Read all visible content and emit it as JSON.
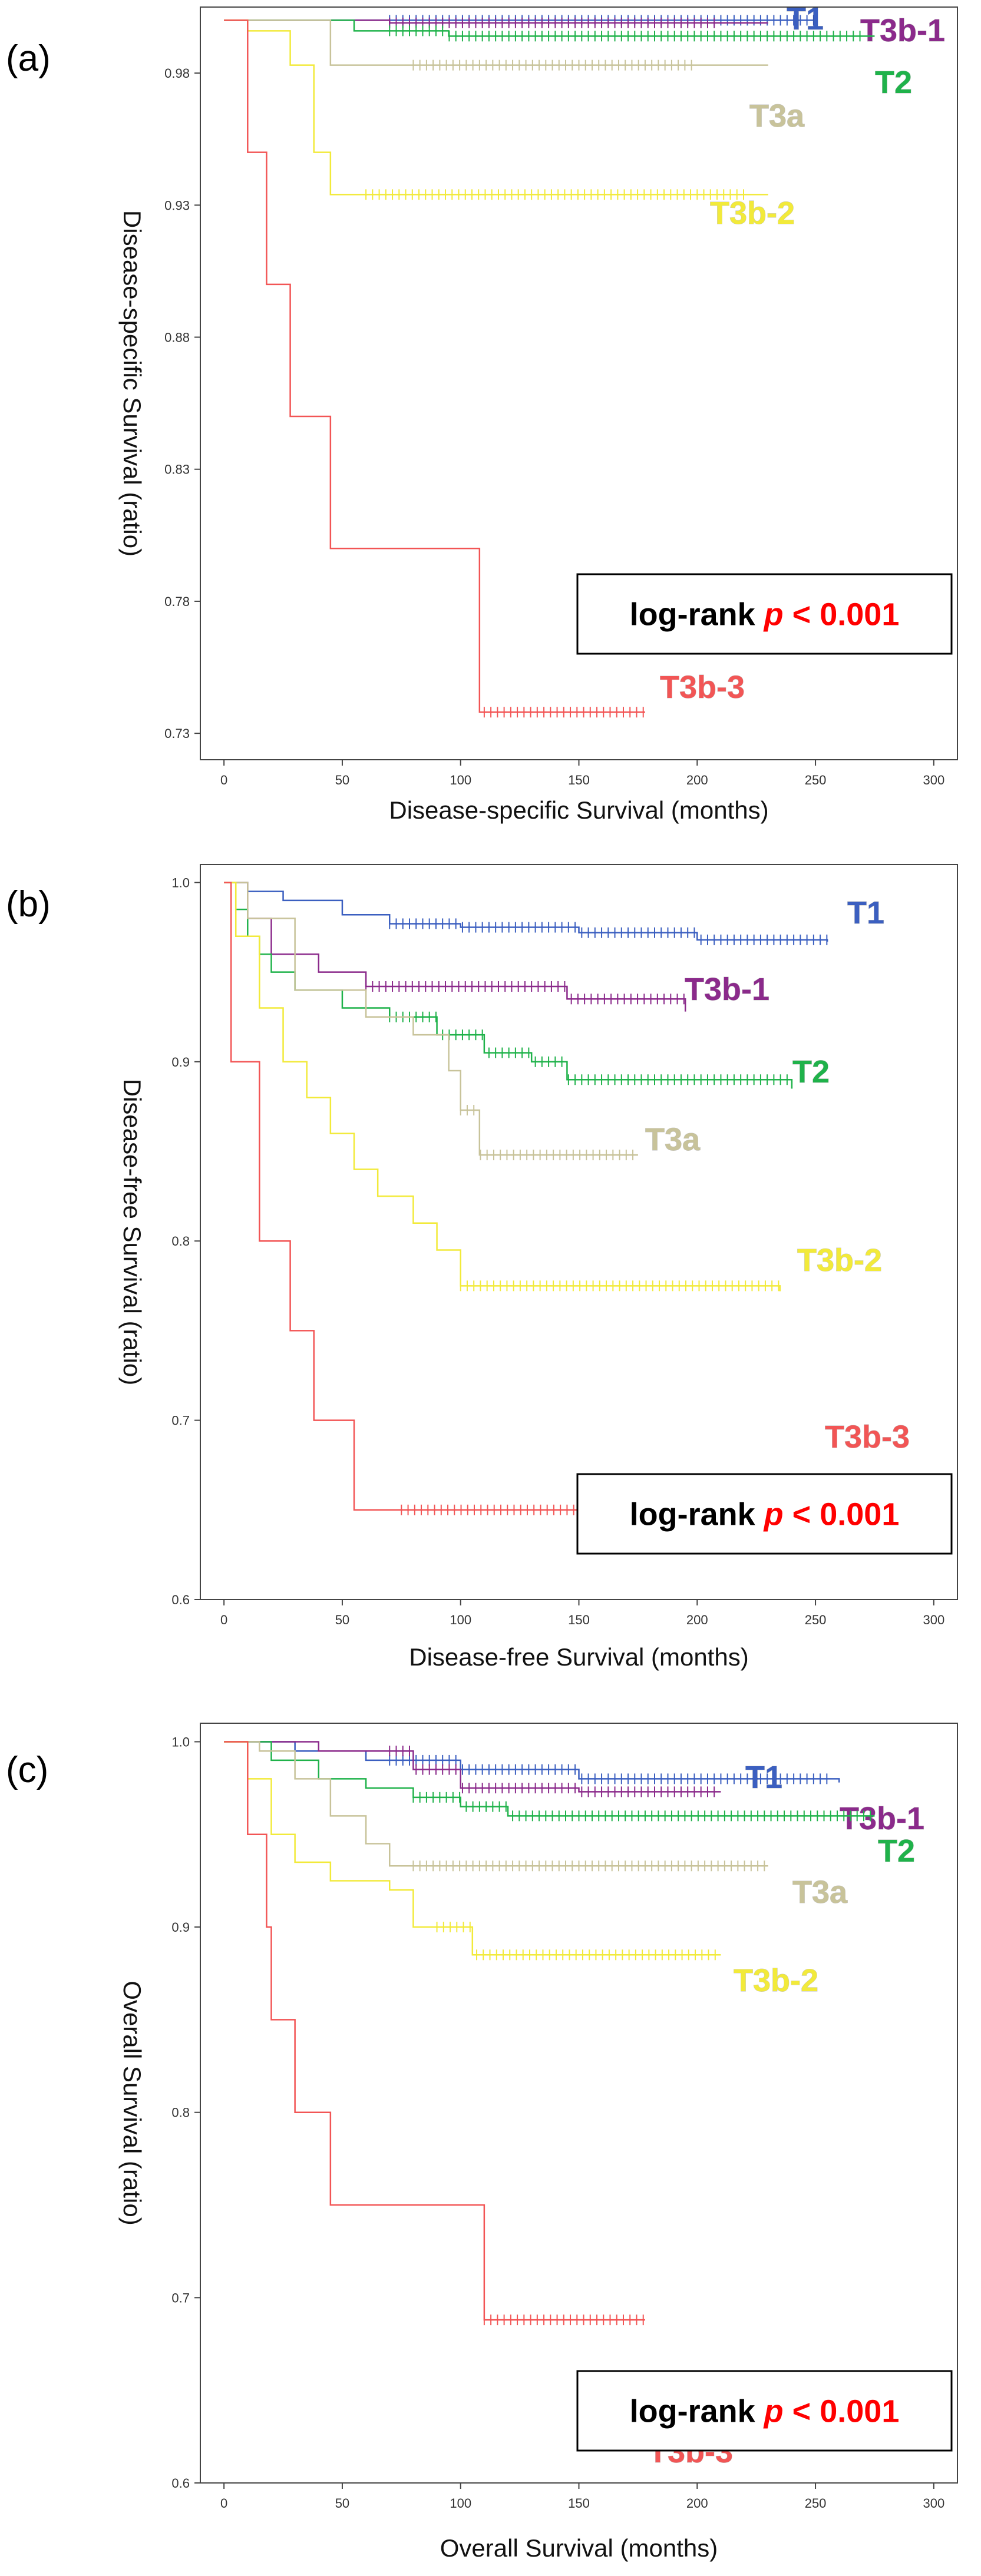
{
  "chart_data": [
    {
      "type": "line",
      "panel_label": "(a)",
      "xlabel": "Disease-specific Survival (months)",
      "ylabel": "Disease-specific Survival (ratio)",
      "xlim": [
        -10,
        310
      ],
      "ylim": [
        0.72,
        1.005
      ],
      "xticks": [
        0,
        50,
        100,
        150,
        200,
        250,
        300
      ],
      "yticks": [
        0.73,
        0.78,
        0.83,
        0.88,
        0.93,
        0.98
      ],
      "tick_labels_y": [
        "0.73",
        "0.78",
        "0.83",
        "0.88",
        "0.93",
        "0.98"
      ],
      "annotation": {
        "text": "log-rank",
        "p_symbol": "p",
        "p_value": "< 0.001"
      },
      "series": [
        {
          "name": "T1",
          "color": "#3b5fc0",
          "steps": [
            [
              0,
              1.0
            ],
            [
              250,
              0.9995
            ]
          ],
          "censor_range": [
            70,
            250
          ]
        },
        {
          "name": "T3b-1",
          "color": "#8b2a8b",
          "steps": [
            [
              0,
              1.0
            ],
            [
              70,
              0.999
            ],
            [
              230,
              0.999
            ]
          ],
          "censor_range": [
            70,
            210
          ]
        },
        {
          "name": "T2",
          "color": "#1fb24a",
          "steps": [
            [
              0,
              1.0
            ],
            [
              55,
              0.996
            ],
            [
              95,
              0.994
            ],
            [
              275,
              0.994
            ]
          ],
          "censor_range": [
            70,
            270
          ]
        },
        {
          "name": "T3a",
          "color": "#c8c39a",
          "steps": [
            [
              0,
              1.0
            ],
            [
              45,
              0.983
            ],
            [
              230,
              0.983
            ]
          ],
          "censor_range": [
            80,
            200
          ]
        },
        {
          "name": "T3b-2",
          "color": "#f2ea3a",
          "steps": [
            [
              0,
              1.0
            ],
            [
              10,
              0.996
            ],
            [
              28,
              0.983
            ],
            [
              38,
              0.95
            ],
            [
              45,
              0.934
            ],
            [
              230,
              0.934
            ]
          ],
          "censor_range": [
            60,
            220
          ]
        },
        {
          "name": "T3b-3",
          "color": "#f25555",
          "steps": [
            [
              0,
              1.0
            ],
            [
              10,
              0.95
            ],
            [
              18,
              0.9
            ],
            [
              28,
              0.85
            ],
            [
              45,
              0.8
            ],
            [
              108,
              0.738
            ],
            [
              178,
              0.738
            ]
          ],
          "censor_range": [
            110,
            178
          ]
        }
      ]
    },
    {
      "type": "line",
      "panel_label": "(b)",
      "xlabel": "Disease-free Survival (months)",
      "ylabel": "Disease-free Survival (ratio)",
      "xlim": [
        -10,
        310
      ],
      "ylim": [
        0.6,
        1.01
      ],
      "xticks": [
        0,
        50,
        100,
        150,
        200,
        250,
        300
      ],
      "yticks": [
        0.6,
        0.7,
        0.8,
        0.9,
        1.0
      ],
      "tick_labels_y": [
        "0.6",
        "0.7",
        "0.8",
        "0.9",
        "1.0"
      ],
      "annotation": {
        "text": "log-rank",
        "p_symbol": "p",
        "p_value": "< 0.001"
      },
      "series": [
        {
          "name": "T1",
          "color": "#3b5fc0",
          "steps": [
            [
              0,
              1.0
            ],
            [
              10,
              0.995
            ],
            [
              25,
              0.99
            ],
            [
              50,
              0.982
            ],
            [
              70,
              0.977
            ],
            [
              100,
              0.975
            ],
            [
              150,
              0.972
            ],
            [
              200,
              0.968
            ],
            [
              255,
              0.967
            ]
          ],
          "censor_range": [
            70,
            255
          ]
        },
        {
          "name": "T3b-1",
          "color": "#8b2a8b",
          "steps": [
            [
              0,
              1.0
            ],
            [
              10,
              0.98
            ],
            [
              20,
              0.96
            ],
            [
              40,
              0.95
            ],
            [
              60,
              0.942
            ],
            [
              145,
              0.935
            ],
            [
              195,
              0.928
            ]
          ],
          "censor_range": [
            60,
            195
          ]
        },
        {
          "name": "T2",
          "color": "#1fb24a",
          "steps": [
            [
              0,
              1.0
            ],
            [
              5,
              0.985
            ],
            [
              10,
              0.97
            ],
            [
              15,
              0.96
            ],
            [
              20,
              0.95
            ],
            [
              30,
              0.94
            ],
            [
              50,
              0.93
            ],
            [
              70,
              0.925
            ],
            [
              90,
              0.915
            ],
            [
              110,
              0.905
            ],
            [
              130,
              0.9
            ],
            [
              145,
              0.89
            ],
            [
              240,
              0.885
            ]
          ],
          "censor_range": [
            70,
            240
          ]
        },
        {
          "name": "T3a",
          "color": "#c8c39a",
          "steps": [
            [
              0,
              1.0
            ],
            [
              10,
              0.98
            ],
            [
              30,
              0.94
            ],
            [
              60,
              0.925
            ],
            [
              80,
              0.915
            ],
            [
              95,
              0.895
            ],
            [
              100,
              0.873
            ],
            [
              108,
              0.848
            ],
            [
              175,
              0.848
            ]
          ],
          "censor_range": [
            100,
            175
          ]
        },
        {
          "name": "T3b-2",
          "color": "#f2ea3a",
          "steps": [
            [
              0,
              1.0
            ],
            [
              5,
              0.97
            ],
            [
              15,
              0.93
            ],
            [
              25,
              0.9
            ],
            [
              35,
              0.88
            ],
            [
              45,
              0.86
            ],
            [
              55,
              0.84
            ],
            [
              65,
              0.825
            ],
            [
              80,
              0.81
            ],
            [
              90,
              0.795
            ],
            [
              100,
              0.775
            ],
            [
              235,
              0.772
            ]
          ],
          "censor_range": [
            100,
            235
          ]
        },
        {
          "name": "T3b-3",
          "color": "#f25555",
          "steps": [
            [
              0,
              1.0
            ],
            [
              3,
              0.9
            ],
            [
              15,
              0.8
            ],
            [
              28,
              0.75
            ],
            [
              38,
              0.7
            ],
            [
              55,
              0.65
            ],
            [
              268,
              0.65
            ]
          ],
          "censor_range": [
            75,
            268
          ]
        }
      ]
    },
    {
      "type": "line",
      "panel_label": "(c)",
      "xlabel": "Overall Survival (months)",
      "ylabel": "Overall Survival (ratio)",
      "xlim": [
        -10,
        310
      ],
      "ylim": [
        0.6,
        1.01
      ],
      "xticks": [
        0,
        50,
        100,
        150,
        200,
        250,
        300
      ],
      "yticks": [
        0.6,
        0.7,
        0.8,
        0.9,
        1.0
      ],
      "tick_labels_y": [
        "0.6",
        "0.7",
        "0.8",
        "0.9",
        "1.0"
      ],
      "annotation": {
        "text": "log-rank",
        "p_symbol": "p",
        "p_value": "< 0.001"
      },
      "series": [
        {
          "name": "T1",
          "color": "#3b5fc0",
          "steps": [
            [
              0,
              1.0
            ],
            [
              30,
              0.995
            ],
            [
              60,
              0.99
            ],
            [
              100,
              0.985
            ],
            [
              150,
              0.98
            ],
            [
              260,
              0.978
            ]
          ],
          "censor_range": [
            70,
            255
          ]
        },
        {
          "name": "T3b-1",
          "color": "#8b2a8b",
          "steps": [
            [
              0,
              1.0
            ],
            [
              40,
              0.995
            ],
            [
              80,
              0.985
            ],
            [
              100,
              0.975
            ],
            [
              150,
              0.973
            ],
            [
              210,
              0.973
            ]
          ],
          "censor_range": [
            70,
            210
          ]
        },
        {
          "name": "T2",
          "color": "#1fb24a",
          "steps": [
            [
              0,
              1.0
            ],
            [
              20,
              0.99
            ],
            [
              40,
              0.98
            ],
            [
              60,
              0.975
            ],
            [
              80,
              0.97
            ],
            [
              100,
              0.965
            ],
            [
              120,
              0.96
            ],
            [
              275,
              0.96
            ]
          ],
          "censor_range": [
            80,
            275
          ]
        },
        {
          "name": "T3a",
          "color": "#c8c39a",
          "steps": [
            [
              0,
              1.0
            ],
            [
              15,
              0.995
            ],
            [
              30,
              0.98
            ],
            [
              45,
              0.96
            ],
            [
              60,
              0.945
            ],
            [
              70,
              0.933
            ],
            [
              230,
              0.933
            ]
          ],
          "censor_range": [
            80,
            230
          ]
        },
        {
          "name": "T3b-2",
          "color": "#f2ea3a",
          "steps": [
            [
              0,
              1.0
            ],
            [
              10,
              0.98
            ],
            [
              20,
              0.95
            ],
            [
              30,
              0.935
            ],
            [
              45,
              0.925
            ],
            [
              70,
              0.92
            ],
            [
              80,
              0.9
            ],
            [
              105,
              0.885
            ],
            [
              210,
              0.885
            ]
          ],
          "censor_range": [
            90,
            210
          ]
        },
        {
          "name": "T3b-3",
          "color": "#f25555",
          "steps": [
            [
              0,
              1.0
            ],
            [
              10,
              0.95
            ],
            [
              18,
              0.9
            ],
            [
              20,
              0.85
            ],
            [
              30,
              0.8
            ],
            [
              45,
              0.75
            ],
            [
              110,
              0.688
            ],
            [
              178,
              0.688
            ]
          ],
          "censor_range": [
            110,
            178
          ]
        }
      ]
    }
  ]
}
